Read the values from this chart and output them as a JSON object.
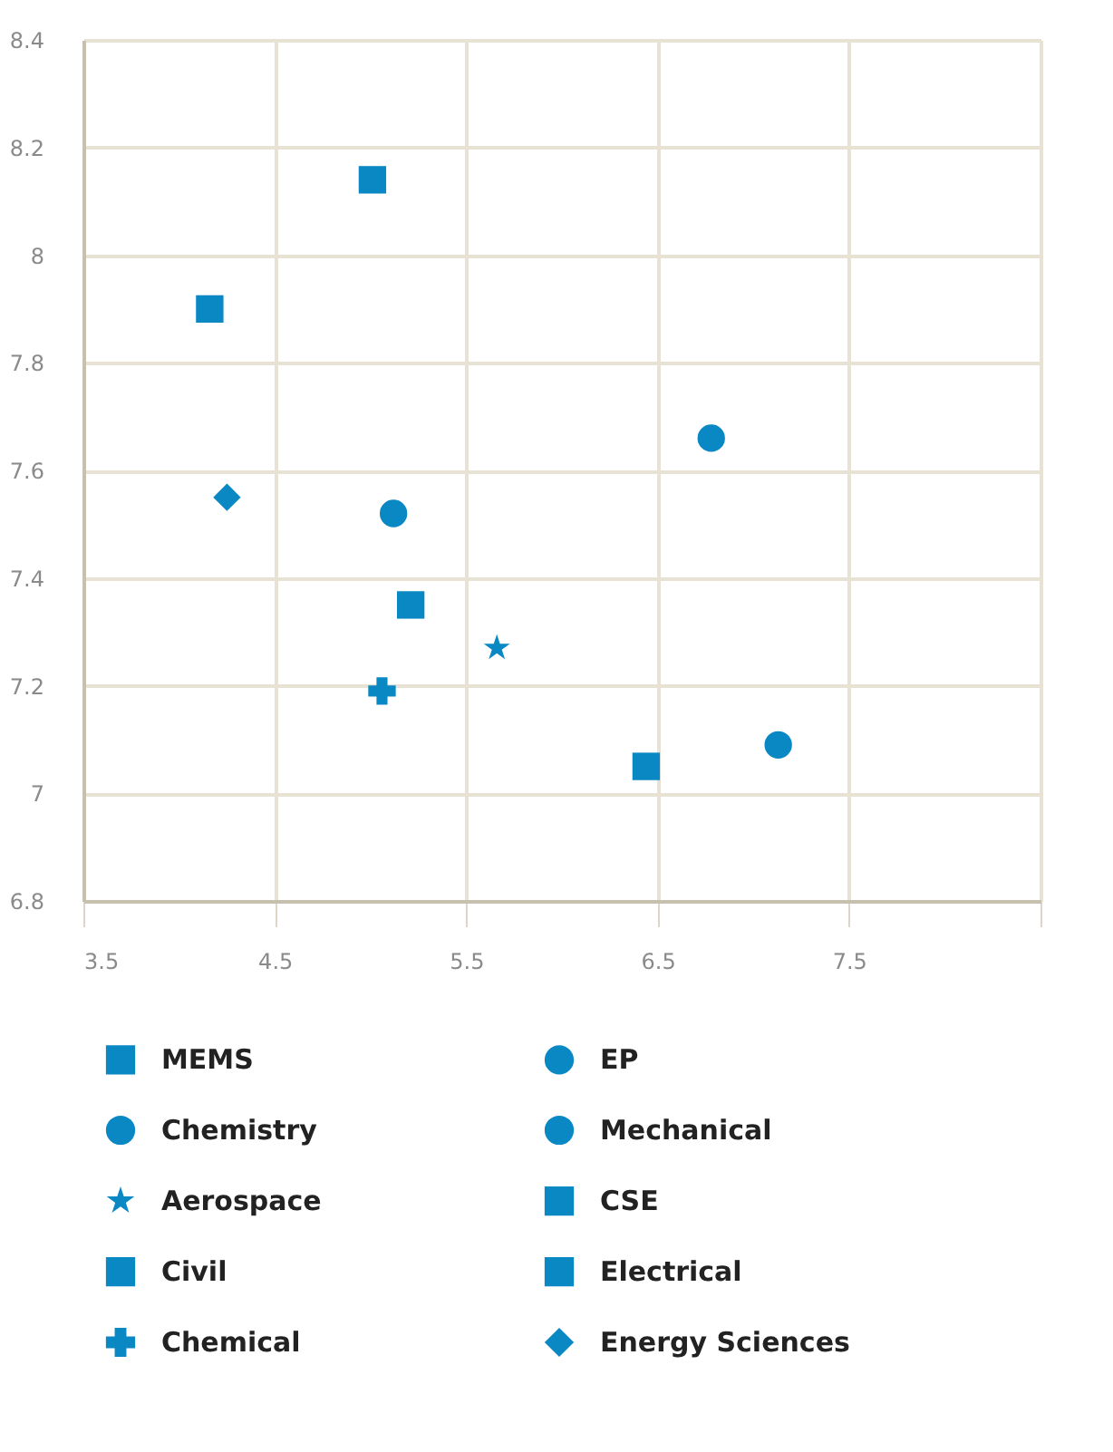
{
  "chart_data": {
    "type": "scatter",
    "xlim": [
      3.5,
      8.5
    ],
    "xticks": [
      3.5,
      4.5,
      5.5,
      6.5,
      7.5,
      {
        "value": 8.5,
        "label": null
      }
    ],
    "ylim": [
      6.8,
      8.4
    ],
    "yticks": [
      6.8,
      7,
      7.2,
      7.4,
      7.6,
      7.8,
      8,
      8.2,
      8.4
    ],
    "grid": true,
    "legend": "bottom",
    "series": [
      {
        "name": "MEMS",
        "color": "#0a88c4",
        "marker": "square",
        "x": [
          6.44
        ],
        "values": [
          7.05
        ]
      },
      {
        "name": "EP",
        "color": "#0a88c4",
        "marker": "circle",
        "x": [
          5.12
        ],
        "values": [
          7.52
        ]
      },
      {
        "name": "Chemistry",
        "color": "#0a88c4",
        "marker": "circle",
        "x": [
          7.13
        ],
        "values": [
          7.09
        ]
      },
      {
        "name": "Mechanical",
        "color": "#0a88c4",
        "marker": "circle",
        "x": [
          6.78
        ],
        "values": [
          7.66
        ]
      },
      {
        "name": "Aerospace",
        "color": "#0a88c4",
        "marker": "star",
        "x": [
          5.66
        ],
        "values": [
          7.27
        ]
      },
      {
        "name": "CSE",
        "color": "#0a88c4",
        "marker": "square",
        "x": [
          4.16
        ],
        "values": [
          7.9
        ]
      },
      {
        "name": "Civil",
        "color": "#0a88c4",
        "marker": "square",
        "x": [
          5.21
        ],
        "values": [
          7.35
        ]
      },
      {
        "name": "Electrical",
        "color": "#0a88c4",
        "marker": "square",
        "x": [
          5.01
        ],
        "values": [
          8.14
        ]
      },
      {
        "name": "Chemical",
        "color": "#0a88c4",
        "marker": "cross",
        "x": [
          5.06
        ],
        "values": [
          7.19
        ]
      },
      {
        "name": "Energy Sciences",
        "color": "#0a88c4",
        "marker": "diamond",
        "x": [
          4.25
        ],
        "values": [
          7.55
        ]
      }
    ]
  }
}
